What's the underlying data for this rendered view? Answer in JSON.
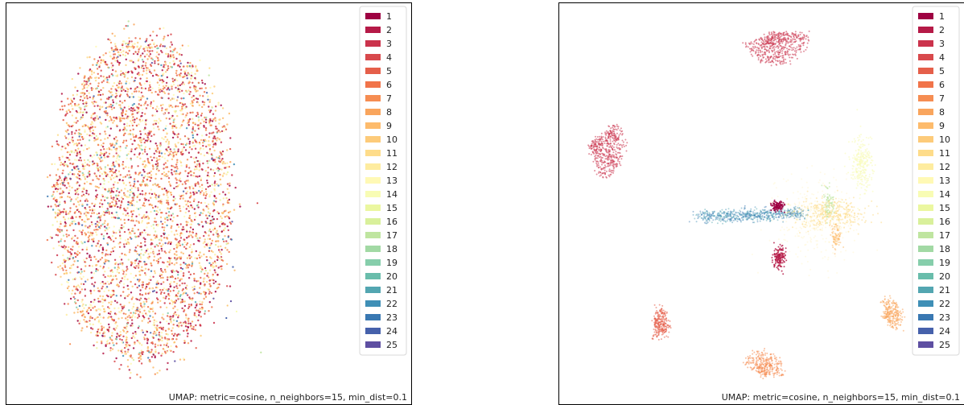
{
  "chart_data": [
    {
      "type": "scatter",
      "title": "",
      "annotation": "UMAP: metric=cosine, n_neighbors=15, min_dist=0.1",
      "legend_position": "top-right",
      "grid": false,
      "axes_visible": false,
      "categories": [
        "1",
        "2",
        "3",
        "4",
        "5",
        "6",
        "7",
        "8",
        "9",
        "10",
        "11",
        "12",
        "13",
        "14",
        "15",
        "16",
        "17",
        "18",
        "19",
        "20",
        "21",
        "22",
        "23",
        "24",
        "25"
      ],
      "colormap": "Spectral",
      "layout": "single-mixed-blob",
      "series": []
    },
    {
      "type": "scatter",
      "title": "",
      "annotation": "UMAP: metric=cosine, n_neighbors=15, min_dist=0.1",
      "legend_position": "top-right",
      "grid": false,
      "axes_visible": false,
      "categories": [
        "1",
        "2",
        "3",
        "4",
        "5",
        "6",
        "7",
        "8",
        "9",
        "10",
        "11",
        "12",
        "13",
        "14",
        "15",
        "16",
        "17",
        "18",
        "19",
        "20",
        "21",
        "22",
        "23",
        "24",
        "25"
      ],
      "colormap": "Spectral",
      "layout": "separated-clusters",
      "series": []
    }
  ],
  "colors": [
    "#9e0142",
    "#b51a47",
    "#cb334c",
    "#d8494c",
    "#e55f4a",
    "#f1744a",
    "#f68d52",
    "#f9a55d",
    "#fdbb6c",
    "#fdcb7a",
    "#fedc8a",
    "#feec9f",
    "#fff9b5",
    "#f8fcb4",
    "#ebf7a0",
    "#d9f09b",
    "#bfe5a0",
    "#a2d9a4",
    "#86ceab",
    "#69bdab",
    "#53a6b1",
    "#3f8fb6",
    "#3978b2",
    "#4661ab",
    "#5e4fa2"
  ]
}
